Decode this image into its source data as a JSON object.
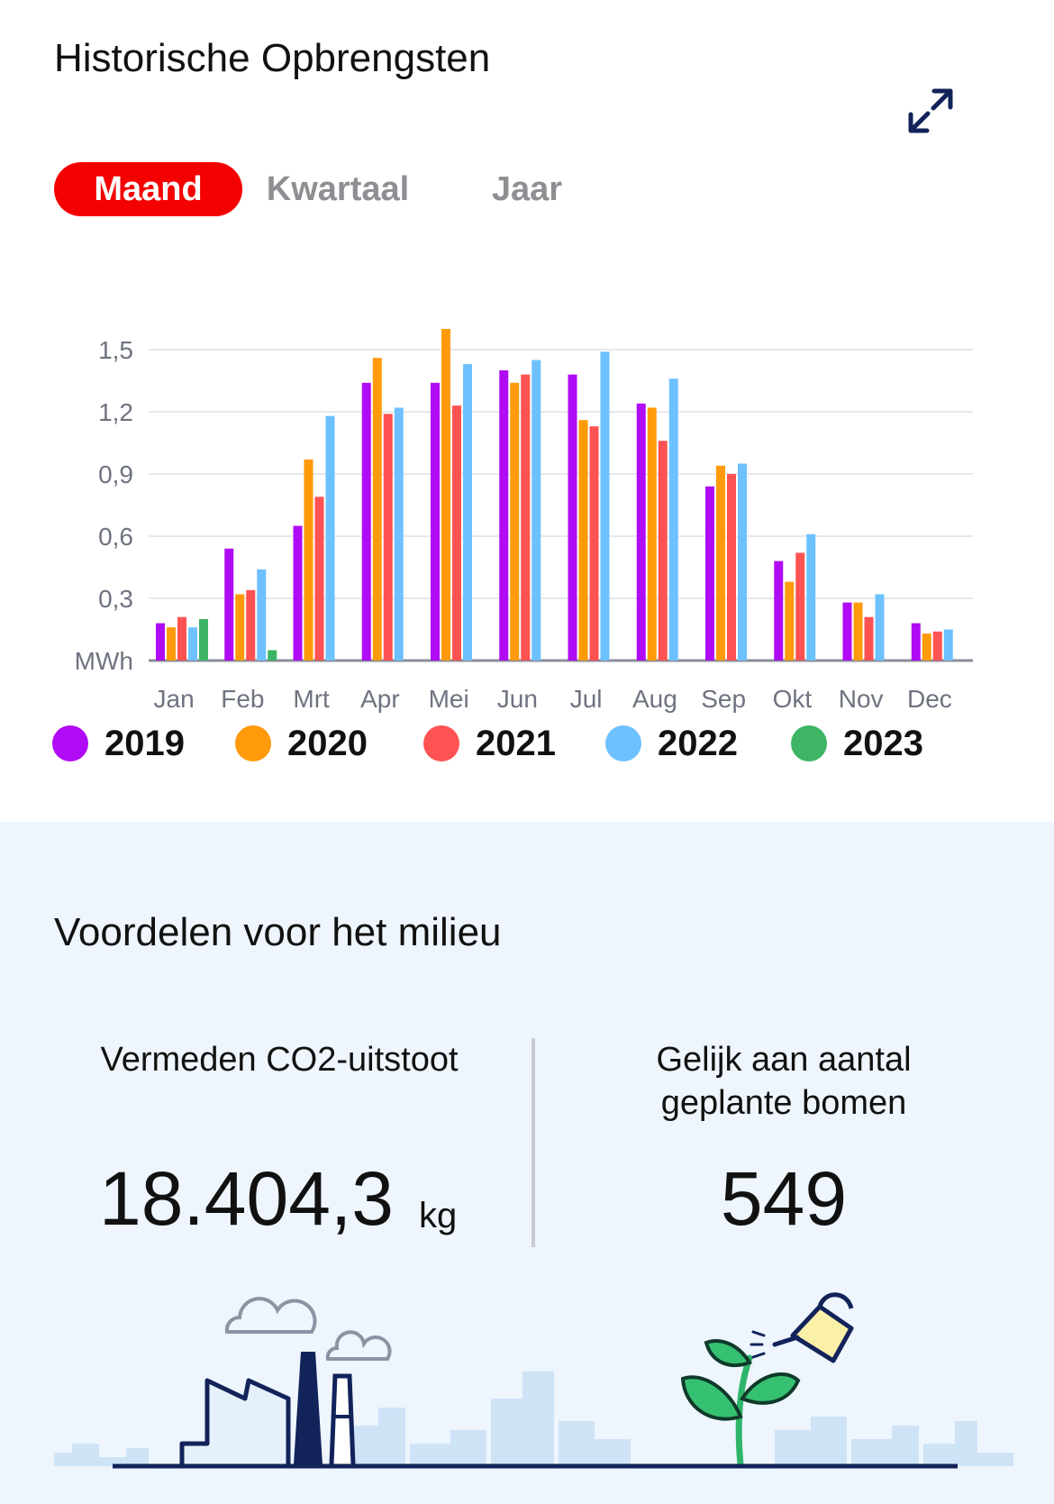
{
  "header": {
    "title": "Historische Opbrengsten",
    "expand_icon": "expand-arrows-icon"
  },
  "period_tabs": {
    "selected": "Maand",
    "items": [
      "Maand",
      "Kwartaal",
      "Jaar"
    ]
  },
  "colors": {
    "accent": "#f40000",
    "2019": "#b00bf5",
    "2020": "#ff9a0a",
    "2021": "#ff5252",
    "2022": "#6ec1ff",
    "2023": "#3db564"
  },
  "chart_data": {
    "type": "bar",
    "ylabel": "MWh",
    "ylim": [
      0,
      1.6
    ],
    "yticks": [
      "1,5",
      "1,2",
      "0,9",
      "0,6",
      "0,3"
    ],
    "ytick_values": [
      1.5,
      1.2,
      0.9,
      0.6,
      0.3
    ],
    "grid": true,
    "categories": [
      "Jan",
      "Feb",
      "Mrt",
      "Apr",
      "Mei",
      "Jun",
      "Jul",
      "Aug",
      "Sep",
      "Okt",
      "Nov",
      "Dec"
    ],
    "series": [
      {
        "name": "2019",
        "values": [
          0.18,
          0.54,
          0.65,
          1.34,
          1.34,
          1.4,
          1.38,
          1.24,
          0.84,
          0.48,
          0.28,
          0.18
        ]
      },
      {
        "name": "2020",
        "values": [
          0.16,
          0.32,
          0.97,
          1.46,
          1.6,
          1.34,
          1.16,
          1.22,
          0.94,
          0.38,
          0.28,
          0.13
        ]
      },
      {
        "name": "2021",
        "values": [
          0.21,
          0.34,
          0.79,
          1.19,
          1.23,
          1.38,
          1.13,
          1.06,
          0.9,
          0.52,
          0.21,
          0.14
        ]
      },
      {
        "name": "2022",
        "values": [
          0.16,
          0.44,
          1.18,
          1.22,
          1.43,
          1.45,
          1.49,
          1.36,
          0.95,
          0.61,
          0.32,
          0.15
        ]
      },
      {
        "name": "2023",
        "values": [
          0.2,
          0.05,
          null,
          null,
          null,
          null,
          null,
          null,
          null,
          null,
          null,
          null
        ]
      }
    ]
  },
  "environment": {
    "title": "Voordelen voor het milieu",
    "co2_label": "Vermeden CO2-uitstoot",
    "co2_value": "18.404,3",
    "co2_unit": "kg",
    "trees_label_line1": "Gelijk aan aantal",
    "trees_label_line2": "geplante bomen",
    "trees_value": "549",
    "illustration_left": "factory-illustration",
    "illustration_right": "plant-watering-illustration"
  }
}
